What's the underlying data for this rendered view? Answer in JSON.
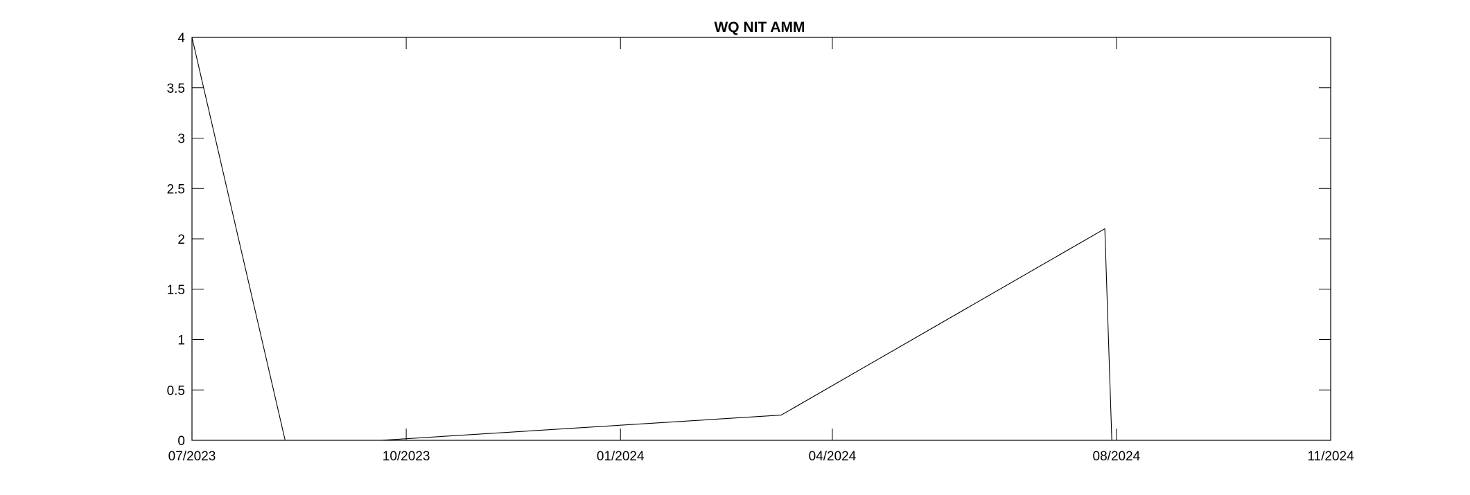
{
  "chart_data": {
    "type": "line",
    "title": "WQ NIT AMM",
    "xlabel": "",
    "ylabel": "",
    "x_axis_type": "date",
    "xlim": [
      "2023-07-01",
      "2024-11-01"
    ],
    "ylim": [
      0,
      4
    ],
    "x_ticks": [
      "2023-07-01",
      "2023-10-01",
      "2024-01-01",
      "2024-04-01",
      "2024-08-01",
      "2024-11-01"
    ],
    "x_tick_labels": [
      "07/2023",
      "10/2023",
      "01/2024",
      "04/2024",
      "08/2024",
      "11/2024"
    ],
    "y_ticks": [
      0,
      0.5,
      1,
      1.5,
      2,
      2.5,
      3,
      3.5,
      4
    ],
    "y_tick_labels": [
      "0",
      "0.5",
      "1",
      "1.5",
      "2",
      "2.5",
      "3",
      "3.5",
      "4"
    ],
    "grid": false,
    "line_color": "#000000",
    "series": [
      {
        "x": [
          "2023-07-01",
          "2023-08-10",
          "2023-09-20",
          "2024-03-10",
          "2024-07-27",
          "2024-07-30",
          "2024-11-01"
        ],
        "y": [
          4.0,
          0.0,
          0.0,
          0.25,
          2.1,
          0.0,
          0.0
        ]
      }
    ]
  }
}
